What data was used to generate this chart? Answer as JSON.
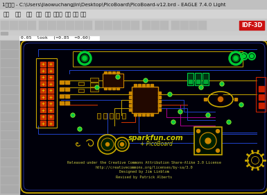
{
  "title_bar": "1日测试 - C:\\Users\\jiaowuchangjin\\Desktop\\PicoBoard\\PicoBoard-v12.brd - EAGLE 7.4.0 Light",
  "menu_items": [
    "文件",
    "编辑",
    "查看",
    "属性",
    "工具",
    "元件库",
    "设计",
    "窗口",
    "帮助"
  ],
  "status_bar": "0.05  look  (=0.85  =0.60)",
  "bg_color": "#080810",
  "board_bg": "#00000e",
  "board_outline_color": "#ccaa00",
  "ui_bg": "#c8c8c8",
  "title_bg": "#c0c0c0",
  "menu_bg": "#d8d8d8",
  "toolbar_bg": "#c8c8c8",
  "left_panel_bg": "#b8b8b8",
  "red_button_color": "#cc1111",
  "red_button_text": "IDF-3D",
  "cc_text": "Released under the Creative Commons Attribution Share-Alike 3.0 License",
  "cc_url": "http://creativecommons.org/licenses/by-sa/3.0",
  "designer": "Designed by Jim Linblom",
  "revised": "Revised by Patrick Alberts",
  "sparkfun_text": "sparkfun.com",
  "picoboard_text": "PicoBoard",
  "figsize": [
    3.85,
    2.81
  ],
  "dpi": 100
}
